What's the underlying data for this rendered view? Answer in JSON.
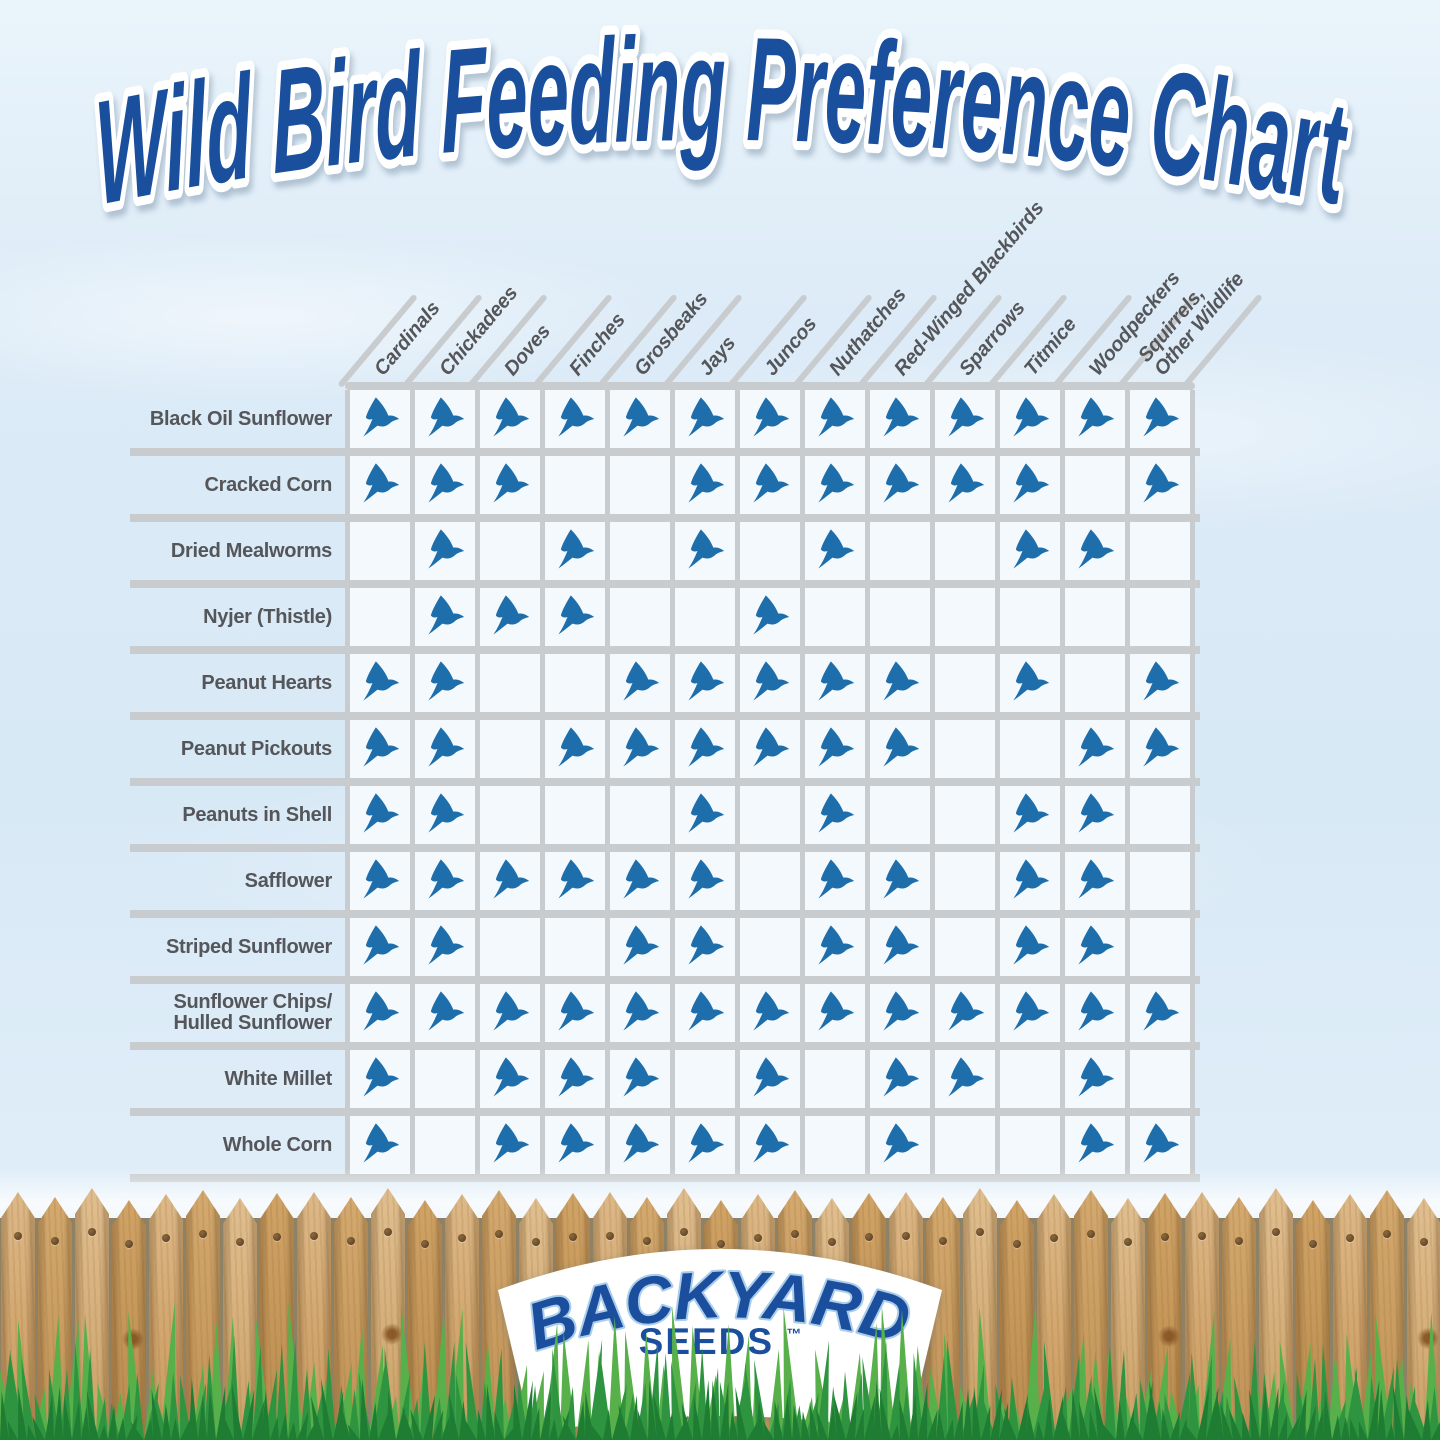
{
  "title": "Wild Bird Feeding Preference Chart",
  "chart_data": {
    "type": "table",
    "description": "Matrix chart: a blue bird icon marks that the species (column) eats the food (row)",
    "cell_icon": "bird-icon",
    "columns": [
      "Cardinals",
      "Chickadees",
      "Doves",
      "Finches",
      "Grosbeaks",
      "Jays",
      "Juncos",
      "Nuthatches",
      "Red-Winged Blackbirds",
      "Sparrows",
      "Titmice",
      "Woodpeckers",
      "Squirrels,\nOther Wildlife"
    ],
    "rows": [
      "Black Oil Sunflower",
      "Cracked Corn",
      "Dried Mealworms",
      "Nyjer (Thistle)",
      "Peanut Hearts",
      "Peanut Pickouts",
      "Peanuts in Shell",
      "Safflower",
      "Striped Sunflower",
      "Sunflower Chips/\nHulled Sunflower",
      "White Millet",
      "Whole Corn"
    ],
    "matrix": [
      [
        1,
        1,
        1,
        1,
        1,
        1,
        1,
        1,
        1,
        1,
        1,
        1,
        1
      ],
      [
        1,
        1,
        1,
        0,
        0,
        1,
        1,
        1,
        1,
        1,
        1,
        0,
        1
      ],
      [
        0,
        1,
        0,
        1,
        0,
        1,
        0,
        1,
        0,
        0,
        1,
        1,
        0
      ],
      [
        0,
        1,
        1,
        1,
        0,
        0,
        1,
        0,
        0,
        0,
        0,
        0,
        0
      ],
      [
        1,
        1,
        0,
        0,
        1,
        1,
        1,
        1,
        1,
        0,
        1,
        0,
        1
      ],
      [
        1,
        1,
        0,
        1,
        1,
        1,
        1,
        1,
        1,
        0,
        0,
        1,
        1
      ],
      [
        1,
        1,
        0,
        0,
        0,
        1,
        0,
        1,
        0,
        0,
        1,
        1,
        0
      ],
      [
        1,
        1,
        1,
        1,
        1,
        1,
        0,
        1,
        1,
        0,
        1,
        1,
        0
      ],
      [
        1,
        1,
        0,
        0,
        1,
        1,
        0,
        1,
        1,
        0,
        1,
        1,
        0
      ],
      [
        1,
        1,
        1,
        1,
        1,
        1,
        1,
        1,
        1,
        1,
        1,
        1,
        1
      ],
      [
        1,
        0,
        1,
        1,
        1,
        0,
        1,
        0,
        1,
        1,
        0,
        1,
        0
      ],
      [
        1,
        0,
        1,
        1,
        1,
        1,
        1,
        0,
        1,
        0,
        0,
        1,
        1
      ]
    ]
  },
  "logo": {
    "line1": "BACKYARD",
    "line2": "SEEDS",
    "tm": "™"
  },
  "colors": {
    "title_blue": "#1A4F9D",
    "logo_blue": "#1B4F9D",
    "bird_blue": "#1E6EAC",
    "grid_gray": "#C9CCCE",
    "label_gray": "#54565A",
    "background_blue": "#DCEBF7",
    "fence_wood": "#D2A76F",
    "grass_green": "#2F9440"
  }
}
